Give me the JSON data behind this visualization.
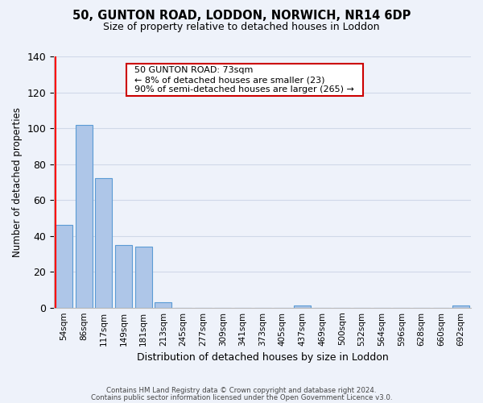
{
  "title": "50, GUNTON ROAD, LODDON, NORWICH, NR14 6DP",
  "subtitle": "Size of property relative to detached houses in Loddon",
  "xlabel": "Distribution of detached houses by size in Loddon",
  "ylabel": "Number of detached properties",
  "bar_labels": [
    "54sqm",
    "86sqm",
    "117sqm",
    "149sqm",
    "181sqm",
    "213sqm",
    "245sqm",
    "277sqm",
    "309sqm",
    "341sqm",
    "373sqm",
    "405sqm",
    "437sqm",
    "469sqm",
    "500sqm",
    "532sqm",
    "564sqm",
    "596sqm",
    "628sqm",
    "660sqm",
    "692sqm"
  ],
  "bar_values": [
    46,
    102,
    72,
    35,
    34,
    3,
    0,
    0,
    0,
    0,
    0,
    0,
    1,
    0,
    0,
    0,
    0,
    0,
    0,
    0,
    1
  ],
  "bar_color": "#aec6e8",
  "bar_edge_color": "#5b9bd5",
  "ylim": [
    0,
    140
  ],
  "yticks": [
    0,
    20,
    40,
    60,
    80,
    100,
    120,
    140
  ],
  "grid_color": "#d0d8e8",
  "bg_color": "#eef2fa",
  "annotation_title": "50 GUNTON ROAD: 73sqm",
  "annotation_line1": "← 8% of detached houses are smaller (23)",
  "annotation_line2": "90% of semi-detached houses are larger (265) →",
  "annotation_box_color": "#ffffff",
  "annotation_box_edge": "#cc0000",
  "red_line_x": -0.425,
  "footer_line1": "Contains HM Land Registry data © Crown copyright and database right 2024.",
  "footer_line2": "Contains public sector information licensed under the Open Government Licence v3.0."
}
